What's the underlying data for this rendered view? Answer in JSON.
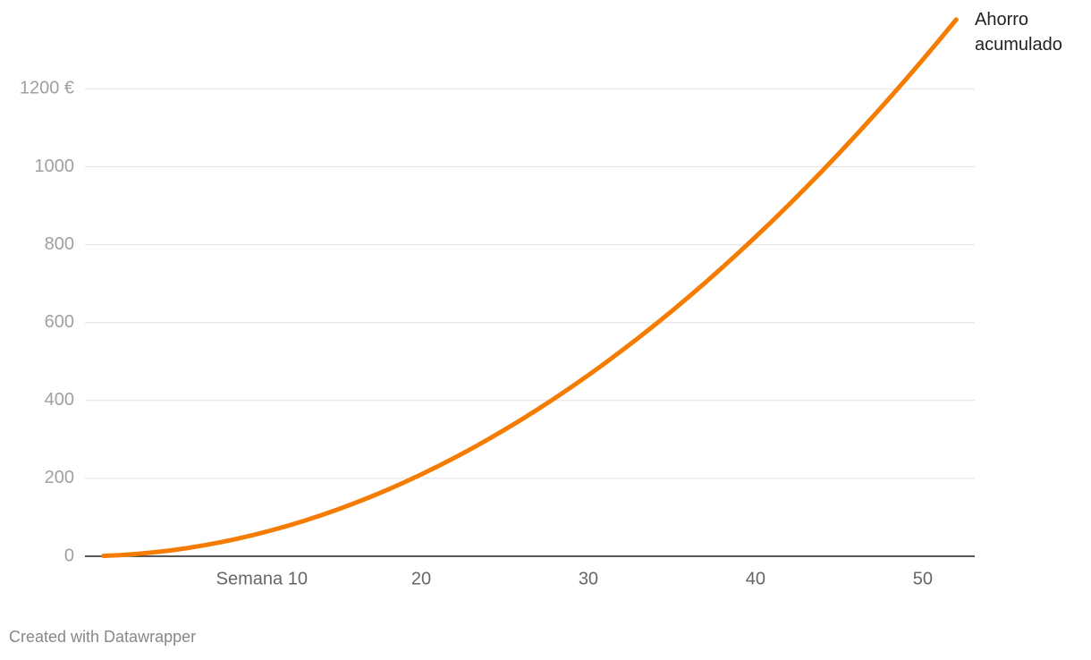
{
  "chart_data": {
    "type": "line",
    "x": [
      1,
      2,
      3,
      4,
      5,
      6,
      7,
      8,
      9,
      10,
      11,
      12,
      13,
      14,
      15,
      16,
      17,
      18,
      19,
      20,
      21,
      22,
      23,
      24,
      25,
      26,
      27,
      28,
      29,
      30,
      31,
      32,
      33,
      34,
      35,
      36,
      37,
      38,
      39,
      40,
      41,
      42,
      43,
      44,
      45,
      46,
      47,
      48,
      49,
      50,
      51,
      52
    ],
    "series": [
      {
        "name": "Ahorro acumulado",
        "color": "#f57c00",
        "values": [
          1,
          3,
          6,
          10,
          15,
          21,
          28,
          36,
          45,
          55,
          66,
          78,
          91,
          105,
          120,
          136,
          153,
          171,
          190,
          210,
          231,
          253,
          276,
          300,
          325,
          351,
          378,
          406,
          435,
          465,
          496,
          528,
          561,
          595,
          630,
          666,
          703,
          741,
          780,
          820,
          861,
          903,
          946,
          990,
          1035,
          1081,
          1128,
          1176,
          1225,
          1275,
          1326,
          1378
        ]
      }
    ],
    "xlim": [
      0,
      53
    ],
    "xticks": [
      {
        "value": 10,
        "label": "Semana 10"
      },
      20,
      30,
      40,
      50
    ],
    "ylim": [
      0,
      1380
    ],
    "yticks": [
      0,
      200,
      400,
      600,
      800,
      1000,
      {
        "value": 1200,
        "label": "1200 €"
      }
    ],
    "grid": true,
    "credit": "Created with Datawrapper"
  }
}
